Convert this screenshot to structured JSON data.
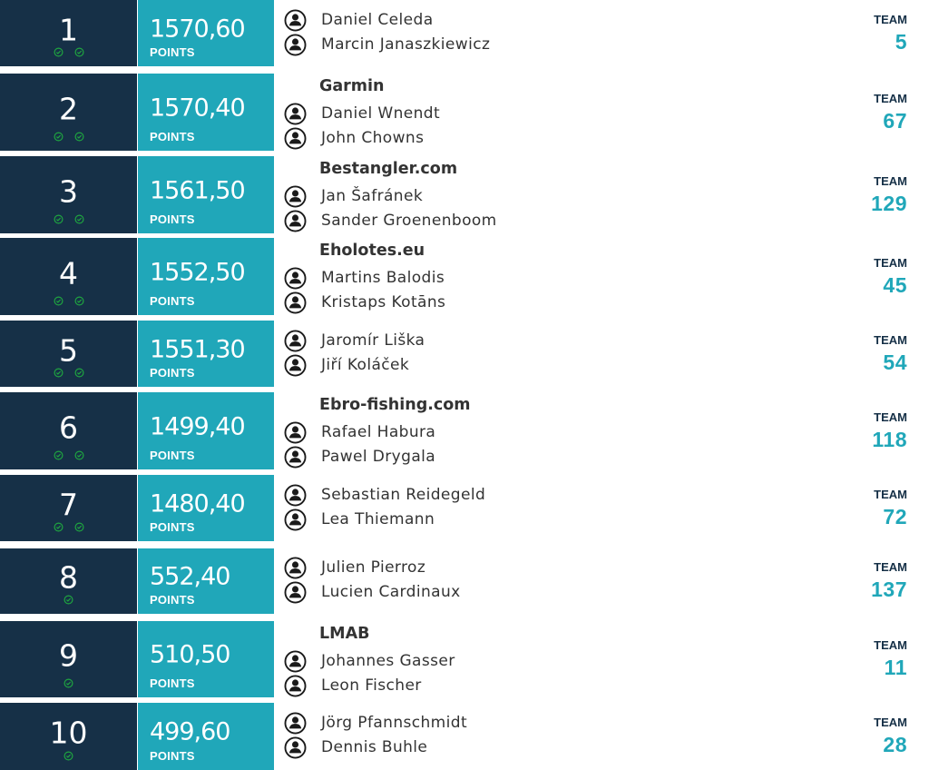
{
  "rows": [
    {
      "rank": "1",
      "checks": 2,
      "points": "1570,60",
      "points_label": "POINTS",
      "team_name": "",
      "members": [
        "Daniel Celeda",
        "Marcin Janaszkiewicz"
      ],
      "team_label": "TEAM",
      "team_number": "5"
    },
    {
      "rank": "2",
      "checks": 2,
      "points": "1570,40",
      "points_label": "POINTS",
      "team_name": "Garmin",
      "members": [
        "Daniel Wnendt",
        "John Chowns"
      ],
      "team_label": "TEAM",
      "team_number": "67"
    },
    {
      "rank": "3",
      "checks": 2,
      "points": "1561,50",
      "points_label": "POINTS",
      "team_name": "Bestangler.com",
      "members": [
        "Jan Šafránek",
        "Sander Groenenboom"
      ],
      "team_label": "TEAM",
      "team_number": "129"
    },
    {
      "rank": "4",
      "checks": 2,
      "points": "1552,50",
      "points_label": "POINTS",
      "team_name": "Eholotes.eu",
      "members": [
        "Martins Balodis",
        "Kristaps Kotāns"
      ],
      "team_label": "TEAM",
      "team_number": "45"
    },
    {
      "rank": "5",
      "checks": 2,
      "points": "1551,30",
      "points_label": "POINTS",
      "team_name": "",
      "members": [
        "Jaromír Liška",
        "Jiří Koláček"
      ],
      "team_label": "TEAM",
      "team_number": "54"
    },
    {
      "rank": "6",
      "checks": 2,
      "points": "1499,40",
      "points_label": "POINTS",
      "team_name": "Ebro-fishing.com",
      "members": [
        "Rafael Habura",
        "Pawel Drygala"
      ],
      "team_label": "TEAM",
      "team_number": "118"
    },
    {
      "rank": "7",
      "checks": 2,
      "points": "1480,40",
      "points_label": "POINTS",
      "team_name": "",
      "members": [
        "Sebastian Reidegeld",
        "Lea Thiemann"
      ],
      "team_label": "TEAM",
      "team_number": "72"
    },
    {
      "rank": "8",
      "checks": 1,
      "points": "552,40",
      "points_label": "POINTS",
      "team_name": "",
      "members": [
        "Julien Pierroz",
        "Lucien Cardinaux"
      ],
      "team_label": "TEAM",
      "team_number": "137"
    },
    {
      "rank": "9",
      "checks": 1,
      "points": "510,50",
      "points_label": "POINTS",
      "team_name": "LMAB",
      "members": [
        "Johannes Gasser",
        "Leon Fischer"
      ],
      "team_label": "TEAM",
      "team_number": "11"
    },
    {
      "rank": "10",
      "checks": 1,
      "points": "499,60",
      "points_label": "POINTS",
      "team_name": "",
      "members": [
        "Jörg Pfannschmidt",
        "Dennis Buhle"
      ],
      "team_label": "TEAM",
      "team_number": "28"
    }
  ],
  "colors": {
    "rank_bg": "#163047",
    "points_bg": "#20a7b9",
    "check_green": "#1fa640",
    "team_number": "#20a7b9",
    "team_label": "#163047",
    "text": "#333333"
  },
  "icons": {
    "member": "person-circle-icon",
    "check": "check-circle-icon"
  }
}
